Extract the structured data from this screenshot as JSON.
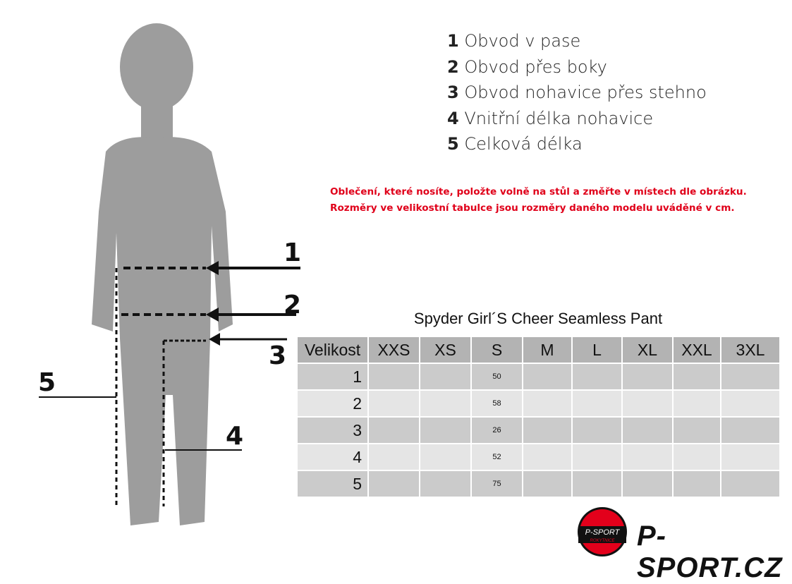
{
  "legend": [
    {
      "n": "1",
      "t": "Obvod v pase"
    },
    {
      "n": "2",
      "t": "Obvod přes boky"
    },
    {
      "n": "3",
      "t": "Obvod nohavice přes stehno"
    },
    {
      "n": "4",
      "t": "Vnitřní délka nohavice"
    },
    {
      "n": "5",
      "t": "Celková délka"
    }
  ],
  "note": [
    "Oblečení, které nosíte, položte volně na stůl a změřte v místech dle obrázku.",
    "Rozměry ve velikostní tabulce jsou rozměry daného modelu uváděné v cm."
  ],
  "figure_labels": [
    "1",
    "2",
    "3",
    "4",
    "5"
  ],
  "table": {
    "title": "Spyder Girl´S Cheer Seamless Pant",
    "headers": [
      "Velikost",
      "XXS",
      "XS",
      "S",
      "M",
      "L",
      "XL",
      "XXL",
      "3XL"
    ],
    "rows": [
      {
        "label": "1",
        "values": [
          "",
          "",
          "50",
          "",
          "",
          "",
          "",
          ""
        ]
      },
      {
        "label": "2",
        "values": [
          "",
          "",
          "58",
          "",
          "",
          "",
          "",
          ""
        ]
      },
      {
        "label": "3",
        "values": [
          "",
          "",
          "26",
          "",
          "",
          "",
          "",
          ""
        ]
      },
      {
        "label": "4",
        "values": [
          "",
          "",
          "52",
          "",
          "",
          "",
          "",
          ""
        ]
      },
      {
        "label": "5",
        "values": [
          "",
          "",
          "75",
          "",
          "",
          "",
          "",
          ""
        ]
      }
    ]
  },
  "logo": {
    "badge_top": "P-SPORT",
    "badge_bottom": "ROKYTNICE",
    "text": "P-SPORT.CZ",
    "color": "#e3001b"
  }
}
